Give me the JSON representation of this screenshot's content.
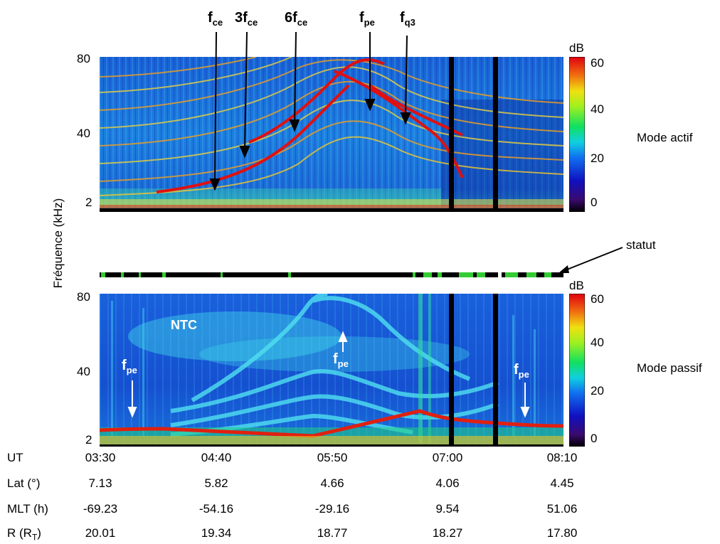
{
  "chart_data": [
    {
      "type": "heatmap",
      "panel_label": "Mode actif",
      "ylabel": "Fréquence (kHz)",
      "y_ticks": [
        "2",
        "40",
        "80"
      ],
      "ylim": [
        2,
        80
      ],
      "colorbar": {
        "unit": "dB",
        "ticks": [
          "0",
          "20",
          "40",
          "60"
        ],
        "range": [
          -5,
          65
        ]
      },
      "annotations": [
        {
          "text": "f",
          "sub": "ce",
          "points_to_khz": 6
        },
        {
          "text": "3f",
          "sub": "ce",
          "points_to_khz": 30
        },
        {
          "text": "6f",
          "sub": "ce",
          "points_to_khz": 45
        },
        {
          "text": "f",
          "sub": "pe",
          "points_to_khz": 55
        },
        {
          "text": "f",
          "sub": "q3",
          "points_to_khz": 46
        }
      ]
    },
    {
      "type": "heatmap",
      "panel_label": "Mode passif",
      "ylabel": "Fréquence (kHz)",
      "y_ticks": [
        "2",
        "40",
        "80"
      ],
      "ylim": [
        2,
        80
      ],
      "colorbar": {
        "unit": "dB",
        "ticks": [
          "0",
          "20",
          "40",
          "60"
        ],
        "range": [
          -5,
          65
        ]
      },
      "annotations": [
        {
          "text": "NTC"
        },
        {
          "text": "f",
          "sub": "pe"
        },
        {
          "text": "f",
          "sub": "pe"
        },
        {
          "text": "f",
          "sub": "pe"
        }
      ]
    }
  ],
  "status_label": "statut",
  "axis_ylabel": "Fréquence (kHz)",
  "colorbar_unit": "dB",
  "rows": [
    {
      "label": "UT",
      "values": [
        "03:30",
        "04:40",
        "05:50",
        "07:00",
        "08:10"
      ]
    },
    {
      "label": "Lat (°)",
      "values": [
        "7.13",
        "5.82",
        "4.66",
        "4.06",
        "4.45"
      ]
    },
    {
      "label": "MLT (h)",
      "values": [
        "-69.23",
        "-54.16",
        "-29.16",
        "9.54",
        "51.06"
      ]
    },
    {
      "label_main": "R (R",
      "label_sub": "T",
      "label_end": ")",
      "values": [
        "20.01",
        "19.34",
        "18.77",
        "18.27",
        "17.80"
      ]
    }
  ],
  "colors": {
    "bg_dark": "#0d1f8f",
    "accent_red": "#e01010",
    "status_green": "#33cc33"
  }
}
